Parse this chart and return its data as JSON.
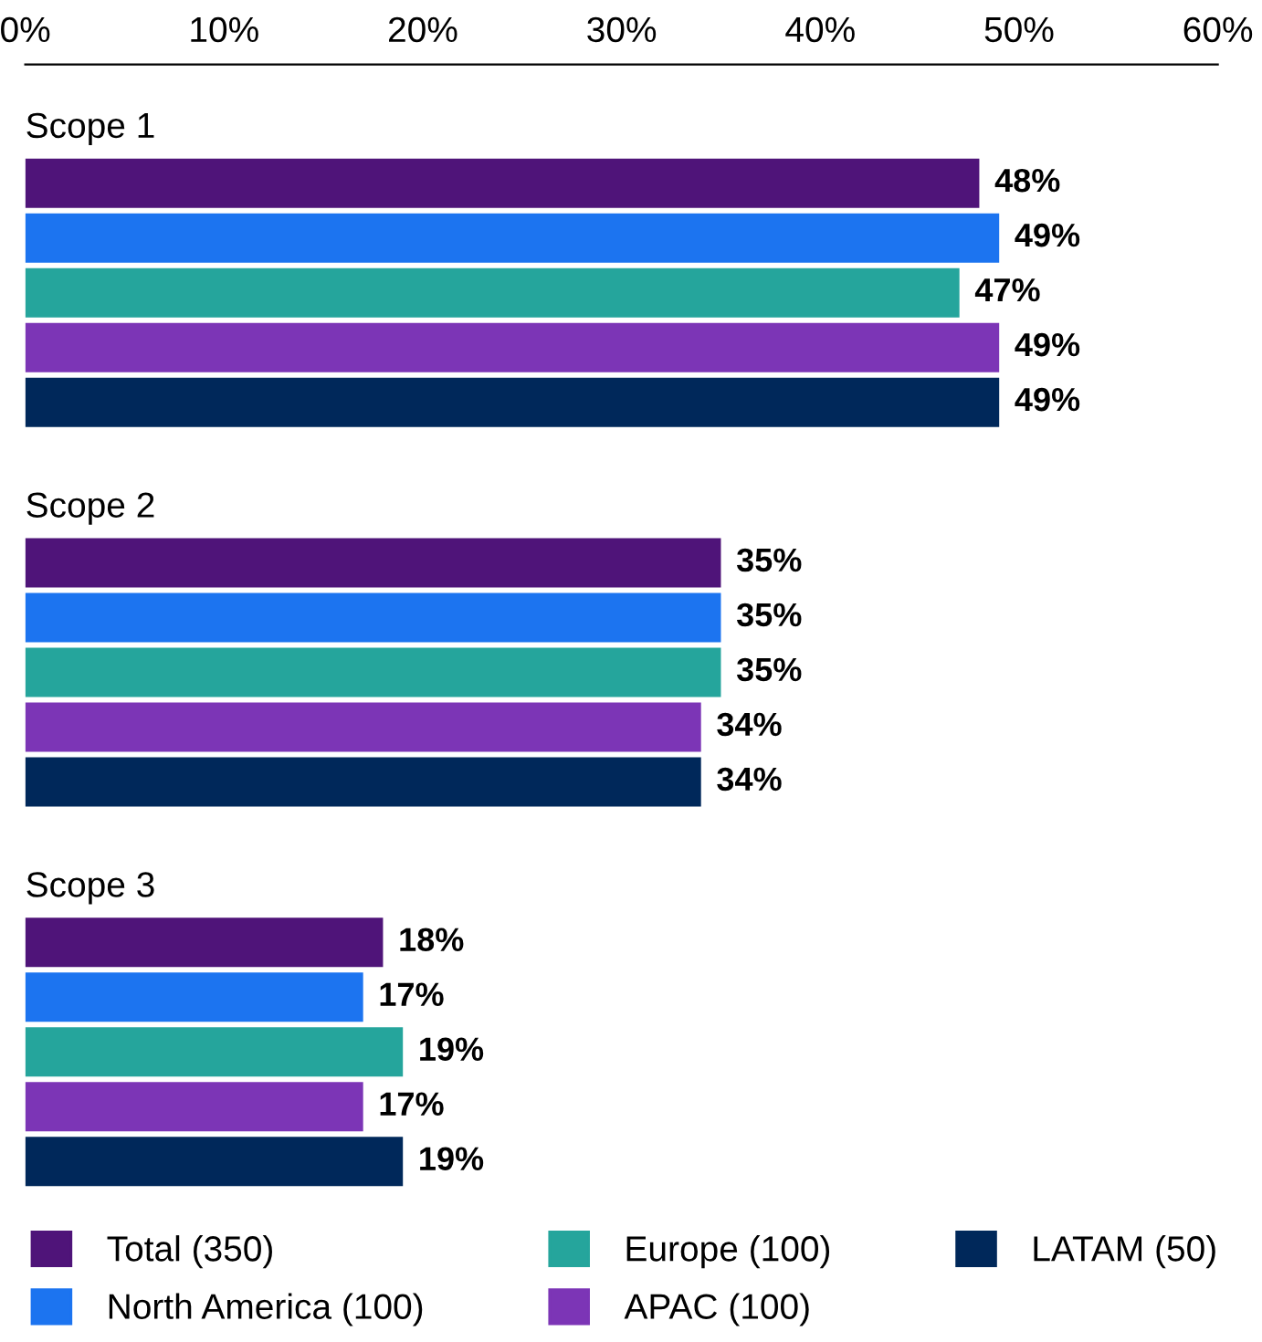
{
  "chart_data": {
    "type": "bar",
    "orientation": "horizontal",
    "categories": [
      "Scope 1",
      "Scope 2",
      "Scope 3"
    ],
    "series": [
      {
        "name": "Total (350)",
        "color": "#4f1479",
        "values": [
          48,
          35,
          18
        ]
      },
      {
        "name": "North America (100)",
        "color": "#1c74f0",
        "values": [
          49,
          35,
          17
        ]
      },
      {
        "name": "Europe (100)",
        "color": "#25a59c",
        "values": [
          47,
          35,
          19
        ]
      },
      {
        "name": "APAC (100)",
        "color": "#7c35b6",
        "values": [
          49,
          34,
          17
        ]
      },
      {
        "name": "LATAM (50)",
        "color": "#00285a",
        "values": [
          49,
          34,
          19
        ]
      }
    ],
    "xlim": [
      0,
      60
    ],
    "xticks": [
      {
        "value": 0,
        "label": "0%"
      },
      {
        "value": 10,
        "label": "10%"
      },
      {
        "value": 20,
        "label": "20%"
      },
      {
        "value": 30,
        "label": "30%"
      },
      {
        "value": 40,
        "label": "40%"
      },
      {
        "value": 50,
        "label": "50%"
      },
      {
        "value": 60,
        "label": "60%"
      }
    ],
    "value_labels": [
      [
        "48%",
        "35%",
        "18%"
      ],
      [
        "49%",
        "35%",
        "17%"
      ],
      [
        "47%",
        "35%",
        "19%"
      ],
      [
        "49%",
        "34%",
        "17%"
      ],
      [
        "49%",
        "34%",
        "19%"
      ]
    ],
    "grid": false,
    "legend": "bottom"
  }
}
